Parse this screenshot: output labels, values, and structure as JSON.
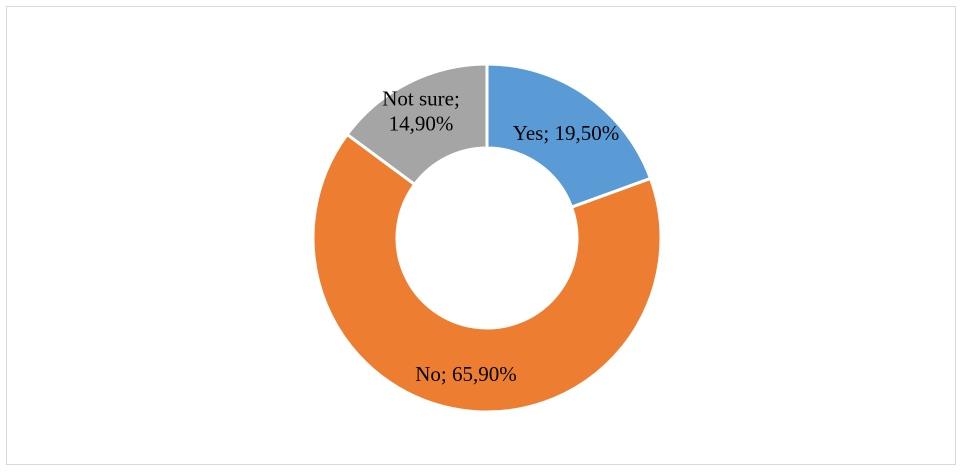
{
  "chart_data": {
    "type": "pie",
    "donut": true,
    "title": "",
    "legend": "none",
    "slices": [
      {
        "name": "Yes",
        "value": 19.5,
        "label": "Yes; 19,50%",
        "label_lines": [
          "Yes; 19,50%"
        ],
        "color": "#5b9bd5"
      },
      {
        "name": "No",
        "value": 65.9,
        "label": "No; 65,90%",
        "label_lines": [
          "No; 65,90%"
        ],
        "color": "#ed7d31"
      },
      {
        "name": "Not sure",
        "value": 14.9,
        "label": "Not sure; 14,90%",
        "label_lines": [
          "Not sure;",
          "14,90%"
        ],
        "color": "#a5a5a5"
      }
    ]
  }
}
